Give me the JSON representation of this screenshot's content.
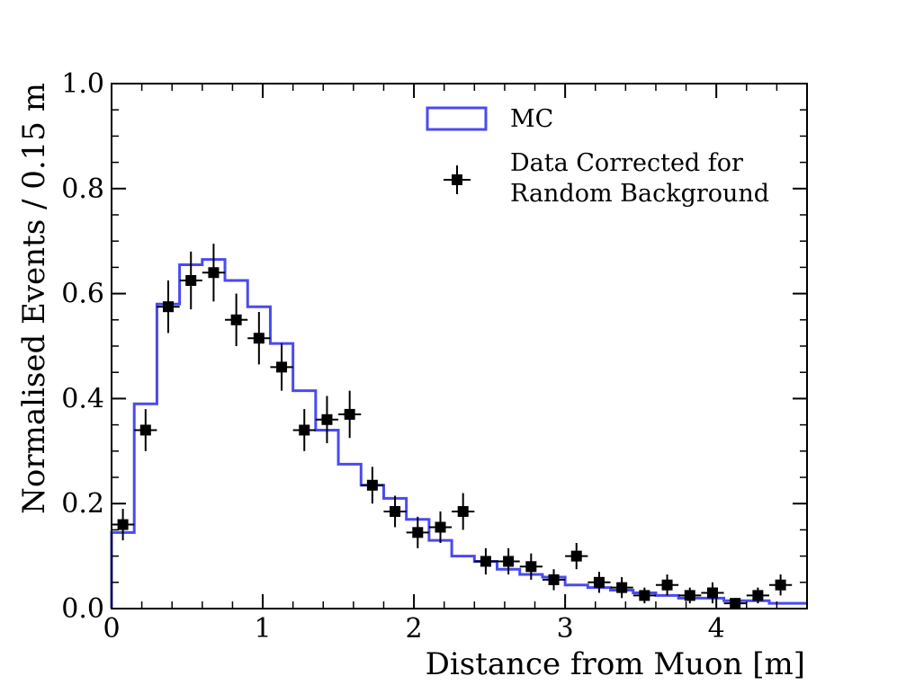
{
  "chart_data": {
    "type": "step+errorbar",
    "xlabel": "Distance from Muon [m]",
    "ylabel": "Normalised Events / 0.15 m",
    "xlim": [
      0,
      4.6
    ],
    "ylim": [
      0,
      1.0
    ],
    "x_ticks": [
      0,
      1,
      2,
      3,
      4
    ],
    "x_tick_labels": [
      "0",
      "1",
      "2",
      "3",
      "4"
    ],
    "y_ticks": [
      0,
      0.2,
      0.4,
      0.6,
      0.8,
      1.0
    ],
    "y_tick_labels": [
      "0.0",
      "0.2",
      "0.4",
      "0.6",
      "0.8",
      "1.0"
    ],
    "bin_width": 0.15,
    "legend": {
      "position": "top-right",
      "entries": [
        {
          "label": "MC",
          "style": "step-line",
          "color": "#4a4af0"
        },
        {
          "label_lines": [
            "Data Corrected for",
            "Random Background"
          ],
          "style": "square-marker-errorbar",
          "color": "#000000"
        }
      ]
    },
    "series": [
      {
        "name": "MC",
        "style": "step",
        "color": "#4a4af0",
        "bin_edges": [
          0,
          0.15,
          0.3,
          0.45,
          0.6,
          0.75,
          0.9,
          1.05,
          1.2,
          1.35,
          1.5,
          1.65,
          1.8,
          1.95,
          2.1,
          2.25,
          2.4,
          2.55,
          2.7,
          2.85,
          3.0,
          3.15,
          3.3,
          3.45,
          3.6,
          3.75,
          3.9,
          4.05,
          4.2,
          4.35,
          4.5,
          4.6
        ],
        "values": [
          0.145,
          0.39,
          0.58,
          0.655,
          0.665,
          0.625,
          0.575,
          0.505,
          0.415,
          0.34,
          0.275,
          0.235,
          0.21,
          0.17,
          0.13,
          0.1,
          0.09,
          0.075,
          0.065,
          0.06,
          0.045,
          0.04,
          0.035,
          0.03,
          0.025,
          0.02,
          0.02,
          0.015,
          0.015,
          0.01,
          0.01
        ]
      },
      {
        "name": "Data Corrected for Random Background",
        "style": "square-errorbar",
        "color": "#000000",
        "x": [
          0.075,
          0.225,
          0.375,
          0.525,
          0.675,
          0.825,
          0.975,
          1.125,
          1.275,
          1.425,
          1.575,
          1.725,
          1.875,
          2.025,
          2.175,
          2.325,
          2.475,
          2.625,
          2.775,
          2.925,
          3.075,
          3.225,
          3.375,
          3.525,
          3.675,
          3.825,
          3.975,
          4.125,
          4.275,
          4.425
        ],
        "y": [
          0.16,
          0.34,
          0.575,
          0.625,
          0.64,
          0.55,
          0.515,
          0.46,
          0.34,
          0.36,
          0.37,
          0.235,
          0.185,
          0.145,
          0.155,
          0.185,
          0.09,
          0.09,
          0.08,
          0.055,
          0.1,
          0.05,
          0.04,
          0.025,
          0.045,
          0.025,
          0.03,
          0.01,
          0.025,
          0.045
        ],
        "xerr": 0.075,
        "yerr": [
          0.03,
          0.04,
          0.05,
          0.055,
          0.055,
          0.05,
          0.05,
          0.045,
          0.04,
          0.045,
          0.045,
          0.035,
          0.03,
          0.03,
          0.03,
          0.035,
          0.025,
          0.025,
          0.025,
          0.02,
          0.025,
          0.02,
          0.02,
          0.015,
          0.02,
          0.015,
          0.02,
          0.01,
          0.015,
          0.02
        ]
      }
    ]
  }
}
